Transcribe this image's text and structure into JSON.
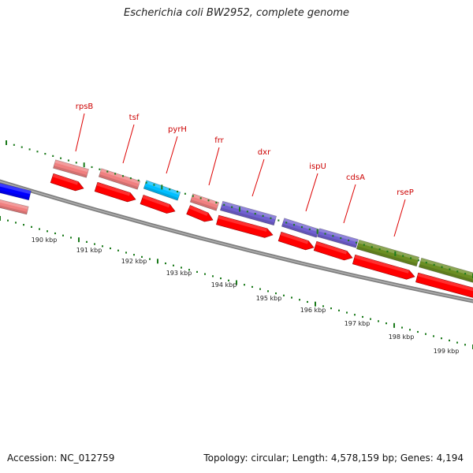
{
  "title": "Escherichia coli BW2952, complete genome",
  "footer": {
    "accession": "Accession: NC_012759",
    "summary": "Topology: circular; Length: 4,578,159 bp; Genes: 4,194"
  },
  "genes": [
    {
      "label": "rpsB"
    },
    {
      "label": "tsf"
    },
    {
      "label": "pyrH"
    },
    {
      "label": "frr"
    },
    {
      "label": "dxr"
    },
    {
      "label": "ispU"
    },
    {
      "label": "cdsA"
    },
    {
      "label": "rseP"
    }
  ],
  "scale": [
    {
      "label": "190 kbp"
    },
    {
      "label": "191 kbp"
    },
    {
      "label": "192 kbp"
    },
    {
      "label": "193 kbp"
    },
    {
      "label": "194 kbp"
    },
    {
      "label": "195 kbp"
    },
    {
      "label": "196 kbp"
    },
    {
      "label": "197 kbp"
    },
    {
      "label": "198 kbp"
    },
    {
      "label": "199 kbp"
    }
  ],
  "colors": {
    "label_line": "#dd0000",
    "backbone": "#808080",
    "tick": "#1a7a1a",
    "feature_salmon": "#f08080",
    "feature_red": "#ff0000",
    "feature_blue": "#0000ff",
    "feature_cyan": "#00bfff",
    "feature_purple": "#7060d0",
    "feature_olive": "#6b8e23"
  }
}
